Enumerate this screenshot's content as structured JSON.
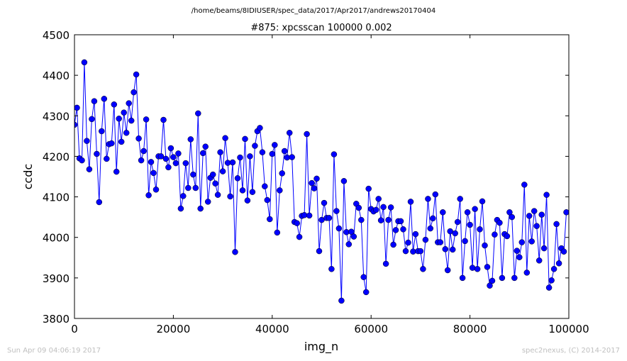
{
  "header": {
    "path": "/home/beams/8IDIUSER/spec_data/2017/Apr2017/andrews20170404"
  },
  "footer": {
    "timestamp": "Sun Apr 09 04:06:19 2017",
    "credit": "spec2nexus, (C) 2014-2017"
  },
  "colors": {
    "series": "#0000ff",
    "footer_text": "#bfbfbf"
  },
  "chart_data": {
    "type": "line",
    "title": "#875: xpcsscan 100000 0.002",
    "xlabel": "img_n",
    "ylabel": "ccdc",
    "xlim": [
      0,
      100000
    ],
    "ylim": [
      3800,
      4500
    ],
    "x_ticks": [
      0,
      20000,
      40000,
      60000,
      80000,
      100000
    ],
    "y_ticks": [
      3800,
      3900,
      4000,
      4100,
      4200,
      4300,
      4400,
      4500
    ],
    "grid": false,
    "marker": "circle",
    "x_step": 500,
    "series": [
      {
        "values": [
          4278,
          4320,
          4195,
          4190,
          4432,
          4238,
          4168,
          4292,
          4336,
          4206,
          4087,
          4262,
          4342,
          4194,
          4230,
          4232,
          4328,
          4162,
          4293,
          4236,
          4308,
          4258,
          4331,
          4288,
          4358,
          4402,
          4244,
          4190,
          4213,
          4291,
          4104,
          4186,
          4159,
          4118,
          4200,
          4200,
          4290,
          4194,
          4173,
          4220,
          4198,
          4183,
          4207,
          4071,
          4102,
          4183,
          4122,
          4242,
          4155,
          4122,
          4306,
          4071,
          4208,
          4224,
          4088,
          4147,
          4155,
          4133,
          4105,
          4210,
          4163,
          4245,
          4184,
          4101,
          4185,
          3964,
          4146,
          4197,
          4116,
          4243,
          4091,
          4200,
          4112,
          4226,
          4262,
          4270,
          4210,
          4126,
          4092,
          4045,
          4206,
          4228,
          4012,
          4116,
          4158,
          4213,
          4197,
          4258,
          4198,
          4038,
          4035,
          4001,
          4053,
          4055,
          4255,
          4054,
          4134,
          4121,
          4145,
          3966,
          4043,
          4085,
          4048,
          4048,
          3922,
          4205,
          4065,
          4022,
          3844,
          4139,
          4013,
          3983,
          4014,
          4002,
          4083,
          4073,
          4043,
          3902,
          3865,
          4120,
          4070,
          4064,
          4068,
          4095,
          4042,
          4075,
          3935,
          4043,
          4074,
          3982,
          4018,
          4040,
          4040,
          4020,
          3966,
          3987,
          4088,
          3965,
          4008,
          3966,
          3966,
          3922,
          3994,
          4095,
          4022,
          4047,
          4106,
          3988,
          3988,
          4062,
          3971,
          3919,
          4015,
          3970,
          4010,
          4038,
          4095,
          3900,
          3991,
          4062,
          4031,
          3925,
          4070,
          3922,
          4020,
          4089,
          3980,
          3927,
          3881,
          3893,
          4007,
          4043,
          4036,
          3900,
          4008,
          4003,
          4062,
          4050,
          3900,
          3967,
          3951,
          3988,
          4130,
          3913,
          4053,
          3990,
          4065,
          4028,
          3943,
          4056,
          3973,
          4105,
          3876,
          3894,
          3922,
          4033,
          3936,
          3973,
          3965,
          4062
        ]
      }
    ]
  }
}
